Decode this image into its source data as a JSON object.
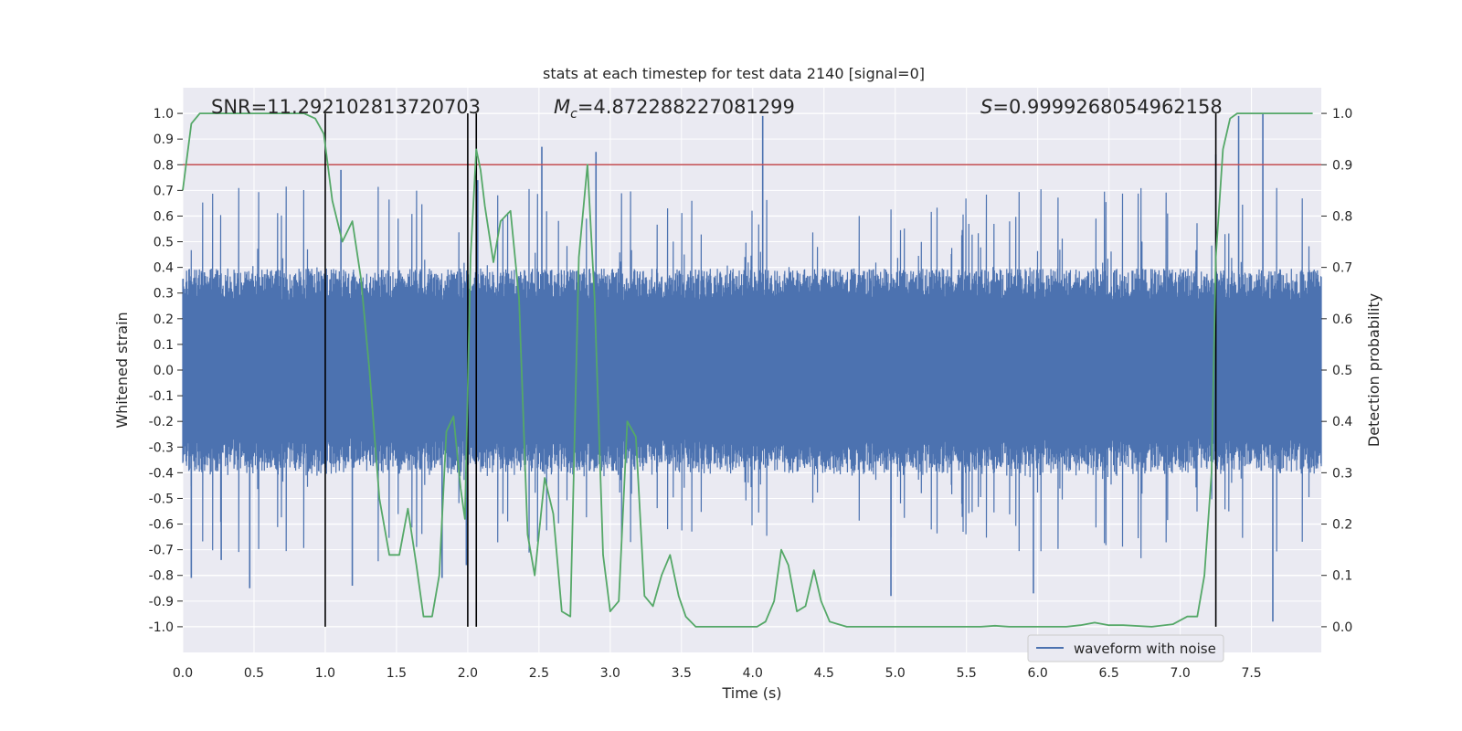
{
  "chart_data": {
    "type": "line",
    "title": "stats at each timestep for test data 2140 [signal=0]",
    "xlabel": "Time (s)",
    "ylabel_left": "Whitened strain",
    "ylabel_right": "Detection probability",
    "xlim": [
      0.0,
      7.99
    ],
    "ylim_left": [
      -1.1,
      1.1
    ],
    "ylim_right": [
      -0.05,
      1.05
    ],
    "x_ticks": [
      "0.0",
      "0.5",
      "1.0",
      "1.5",
      "2.0",
      "2.5",
      "3.0",
      "3.5",
      "4.0",
      "4.5",
      "5.0",
      "5.5",
      "6.0",
      "6.5",
      "7.0",
      "7.5"
    ],
    "y_ticks_left": [
      "1.0",
      "0.9",
      "0.8",
      "0.7",
      "0.6",
      "0.5",
      "0.4",
      "0.3",
      "0.2",
      "0.1",
      "0.0",
      "-0.1",
      "-0.2",
      "-0.3",
      "-0.4",
      "-0.5",
      "-0.6",
      "-0.7",
      "-0.8",
      "-0.9",
      "-1.0"
    ],
    "y_ticks_right": [
      "1.0",
      "0.9",
      "0.8",
      "0.7",
      "0.6",
      "0.5",
      "0.4",
      "0.3",
      "0.2",
      "0.1",
      "0.0"
    ],
    "annotations": {
      "snr": "SNR=11.292102813720703",
      "mc_symbol": "M",
      "mc_sub": "c",
      "mc_value": "=4.872288227081299",
      "s_symbol": "S",
      "s_value": "=0.9999268054962158"
    },
    "legend": {
      "label": "waveform with noise",
      "placement": "lower-right"
    },
    "threshold": {
      "value": 0.9,
      "axis": "right",
      "color": "#c44e52"
    },
    "vertical_lines": [
      1.0,
      2.0,
      2.06,
      7.25
    ],
    "vertical_line_range": [
      -1.0,
      1.0
    ],
    "waveform": {
      "name": "waveform with noise",
      "color": "#4c72b0",
      "typical_amplitude": 0.35,
      "peak_amplitude": 1.0,
      "peaks": [
        {
          "x": 0.06,
          "min": -0.81
        },
        {
          "x": 0.27,
          "min": -0.74
        },
        {
          "x": 0.47,
          "min": -0.85
        },
        {
          "x": 1.11,
          "max": 0.78
        },
        {
          "x": 1.19,
          "min": -0.84
        },
        {
          "x": 1.82,
          "min": -0.81
        },
        {
          "x": 1.99,
          "min": -0.76
        },
        {
          "x": 2.07,
          "max": 0.74
        },
        {
          "x": 2.52,
          "max": 0.87
        },
        {
          "x": 2.9,
          "max": 0.85
        },
        {
          "x": 4.07,
          "max": 0.99
        },
        {
          "x": 4.97,
          "min": -0.88
        },
        {
          "x": 5.97,
          "min": -0.87
        },
        {
          "x": 7.25,
          "max": 0.84
        },
        {
          "x": 7.41,
          "max": 0.99
        },
        {
          "x": 7.58,
          "max": 1.0
        },
        {
          "x": 7.65,
          "min": -0.98
        }
      ]
    },
    "series": [
      {
        "name": "Detection probability",
        "axis": "right",
        "color": "#55a868",
        "x": [
          0.0,
          0.06,
          0.12,
          0.3,
          0.6,
          0.85,
          0.93,
          0.99,
          1.05,
          1.12,
          1.19,
          1.25,
          1.31,
          1.38,
          1.45,
          1.52,
          1.58,
          1.64,
          1.69,
          1.75,
          1.8,
          1.85,
          1.9,
          1.95,
          1.98,
          2.02,
          2.06,
          2.09,
          2.12,
          2.18,
          2.23,
          2.3,
          2.36,
          2.42,
          2.47,
          2.54,
          2.6,
          2.66,
          2.72,
          2.78,
          2.84,
          2.89,
          2.95,
          3.0,
          3.06,
          3.12,
          3.18,
          3.24,
          3.3,
          3.36,
          3.42,
          3.48,
          3.53,
          3.6,
          3.66,
          3.72,
          3.78,
          3.85,
          3.9,
          3.97,
          4.03,
          4.09,
          4.15,
          4.2,
          4.25,
          4.31,
          4.37,
          4.43,
          4.48,
          4.54,
          4.6,
          4.66,
          4.72,
          4.8,
          4.9,
          5.0,
          5.2,
          5.4,
          5.6,
          5.7,
          5.8,
          6.0,
          6.2,
          6.3,
          6.4,
          6.5,
          6.6,
          6.8,
          6.95,
          7.05,
          7.12,
          7.17,
          7.22,
          7.25,
          7.3,
          7.35,
          7.4,
          7.45,
          7.5,
          7.6,
          7.75,
          7.93
        ],
        "y": [
          0.85,
          0.98,
          1.0,
          1.0,
          1.0,
          1.0,
          0.99,
          0.96,
          0.83,
          0.75,
          0.79,
          0.68,
          0.5,
          0.25,
          0.14,
          0.14,
          0.23,
          0.12,
          0.02,
          0.02,
          0.1,
          0.38,
          0.41,
          0.27,
          0.21,
          0.72,
          0.93,
          0.89,
          0.82,
          0.71,
          0.79,
          0.81,
          0.64,
          0.18,
          0.1,
          0.29,
          0.22,
          0.03,
          0.02,
          0.72,
          0.9,
          0.64,
          0.14,
          0.03,
          0.05,
          0.4,
          0.37,
          0.06,
          0.04,
          0.1,
          0.14,
          0.06,
          0.02,
          0.0,
          0.0,
          0.0,
          0.0,
          0.0,
          0.0,
          0.0,
          0.0,
          0.01,
          0.05,
          0.15,
          0.12,
          0.03,
          0.04,
          0.11,
          0.05,
          0.01,
          0.005,
          0.0,
          0.0,
          0.0,
          0.0,
          0.0,
          0.0,
          0.0,
          0.0,
          0.002,
          0.0,
          0.0,
          0.0,
          0.003,
          0.008,
          0.003,
          0.003,
          0.0,
          0.005,
          0.02,
          0.02,
          0.1,
          0.3,
          0.72,
          0.93,
          0.99,
          1.0,
          1.0,
          1.0,
          1.0,
          1.0,
          1.0
        ]
      }
    ]
  }
}
